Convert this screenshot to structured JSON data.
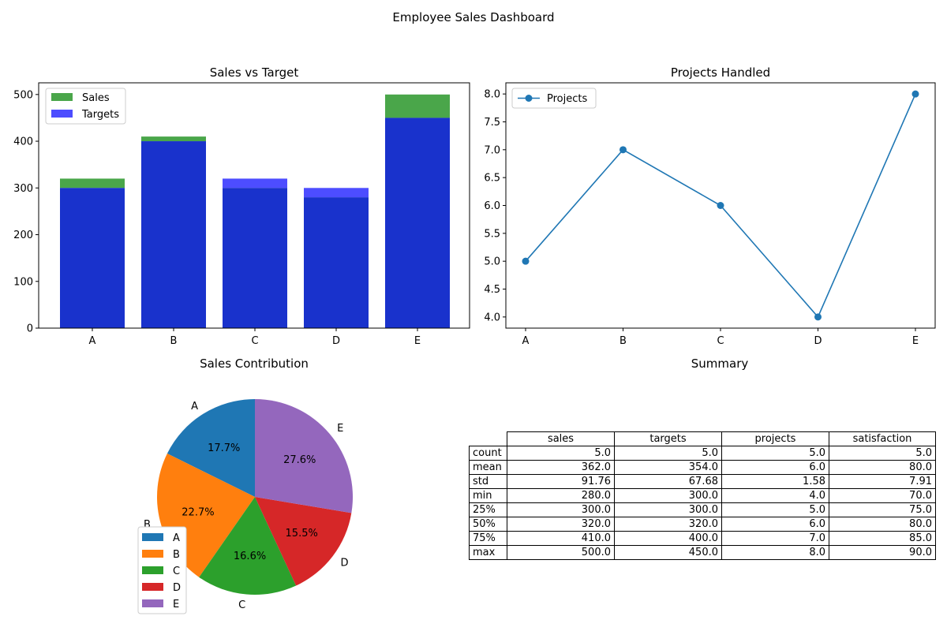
{
  "suptitle": "Employee Sales Dashboard",
  "colors": {
    "sales": "#4aa64a",
    "targets": "#4d4dff",
    "overlap": "#1932cc",
    "line": "#1f77b4",
    "pie": [
      "#1f77b4",
      "#ff7f0e",
      "#2ca02c",
      "#d62728",
      "#9467bd"
    ]
  },
  "chart_data": [
    {
      "type": "bar",
      "title": "Sales vs Target",
      "categories": [
        "A",
        "B",
        "C",
        "D",
        "E"
      ],
      "series": [
        {
          "name": "Sales",
          "values": [
            320,
            410,
            300,
            280,
            500
          ]
        },
        {
          "name": "Targets",
          "values": [
            300,
            400,
            320,
            300,
            450
          ]
        }
      ],
      "ylim": [
        0,
        525
      ],
      "yticks": [
        0,
        100,
        200,
        300,
        400,
        500
      ],
      "legend": "upper-left"
    },
    {
      "type": "line",
      "title": "Projects Handled",
      "categories": [
        "A",
        "B",
        "C",
        "D",
        "E"
      ],
      "series": [
        {
          "name": "Projects",
          "values": [
            5,
            7,
            6,
            4,
            8
          ]
        }
      ],
      "ylim": [
        3.8,
        8.2
      ],
      "yticks": [
        "4.0",
        "4.5",
        "5.0",
        "5.5",
        "6.0",
        "6.5",
        "7.0",
        "7.5",
        "8.0"
      ],
      "legend": "upper-left"
    },
    {
      "type": "pie",
      "title": "Sales Contribution",
      "labels": [
        "A",
        "B",
        "C",
        "D",
        "E"
      ],
      "values": [
        320,
        410,
        300,
        280,
        500
      ],
      "percent_labels": [
        "17.7%",
        "22.7%",
        "16.6%",
        "15.5%",
        "27.6%"
      ],
      "legend": "lower-left"
    },
    {
      "type": "table",
      "title": "Summary",
      "columns": [
        "sales",
        "targets",
        "projects",
        "satisfaction"
      ],
      "rows": [
        {
          "label": "count",
          "values": [
            "5.0",
            "5.0",
            "5.0",
            "5.0"
          ]
        },
        {
          "label": "mean",
          "values": [
            "362.0",
            "354.0",
            "6.0",
            "80.0"
          ]
        },
        {
          "label": "std",
          "values": [
            "91.76",
            "67.68",
            "1.58",
            "7.91"
          ]
        },
        {
          "label": "min",
          "values": [
            "280.0",
            "300.0",
            "4.0",
            "70.0"
          ]
        },
        {
          "label": "25%",
          "values": [
            "300.0",
            "300.0",
            "5.0",
            "75.0"
          ]
        },
        {
          "label": "50%",
          "values": [
            "320.0",
            "320.0",
            "6.0",
            "80.0"
          ]
        },
        {
          "label": "75%",
          "values": [
            "410.0",
            "400.0",
            "7.0",
            "85.0"
          ]
        },
        {
          "label": "max",
          "values": [
            "500.0",
            "450.0",
            "8.0",
            "90.0"
          ]
        }
      ]
    }
  ]
}
